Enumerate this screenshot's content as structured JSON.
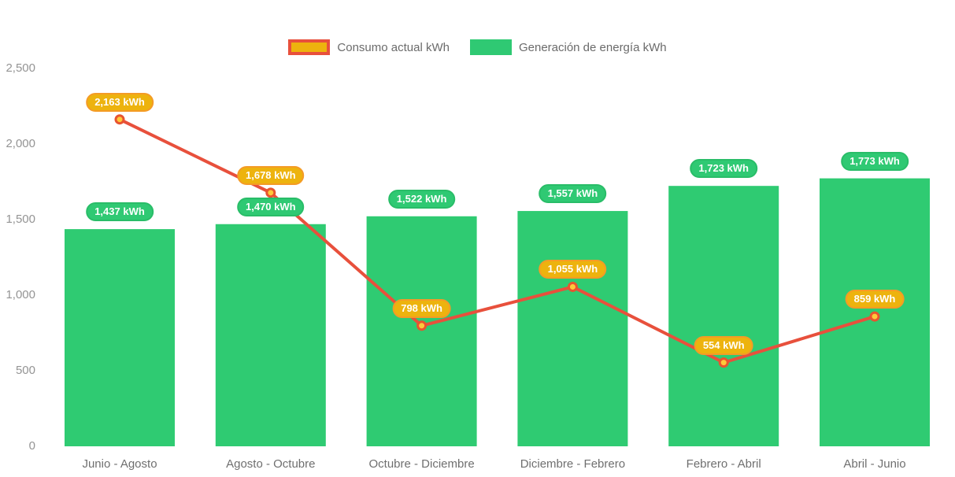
{
  "colors": {
    "background": "#ffffff",
    "bar": "#2FCB72",
    "bar_badge_fill": "#2FC973",
    "bar_badge_border": "#29BD68",
    "line": "#E8503C",
    "marker_fill": "#FFC93A",
    "marker_stroke": "#E8542F",
    "consumption_badge_fill": "#EDB30E",
    "consumption_badge_border": "#F49B26",
    "legend_consumption_fill": "#EDB30E",
    "legend_consumption_border": "#E8503C",
    "legend_generation_fill": "#2FC973",
    "badge_text": "#ffffff",
    "y_axis_text": "#949494",
    "x_axis_text": "#6f6f6f",
    "legend_text": "#6b6b6b"
  },
  "legend": {
    "consumption_label": "Consumo actual kWh",
    "generation_label": "Generación de energía kWh"
  },
  "chart_data": {
    "type": "bar",
    "subtype": "bar+line combo",
    "categories": [
      "Junio - Agosto",
      "Agosto - Octubre",
      "Octubre - Diciembre",
      "Diciembre - Febrero",
      "Febrero - Abril",
      "Abril - Junio"
    ],
    "series": [
      {
        "name": "Consumo actual kWh",
        "type": "line",
        "values": [
          2163,
          1678,
          798,
          1055,
          554,
          859
        ],
        "labels": [
          "2,163 kWh",
          "1,678 kWh",
          "798 kWh",
          "1,055 kWh",
          "554 kWh",
          "859 kWh"
        ]
      },
      {
        "name": "Generación de energía kWh",
        "type": "bar",
        "values": [
          1437,
          1470,
          1522,
          1557,
          1723,
          1773
        ],
        "labels": [
          "1,437 kWh",
          "1,470 kWh",
          "1,522 kWh",
          "1,557 kWh",
          "1,723 kWh",
          "1,773 kWh"
        ]
      }
    ],
    "y_axis": {
      "ticks": [
        0,
        500,
        1000,
        1500,
        2000,
        2500
      ],
      "tick_labels": [
        "0",
        "500",
        "1,000",
        "1,500",
        "2,000",
        "2,500"
      ],
      "min": 0,
      "max": 2500
    },
    "unit": "kWh",
    "grid": false,
    "legend_position": "top"
  }
}
